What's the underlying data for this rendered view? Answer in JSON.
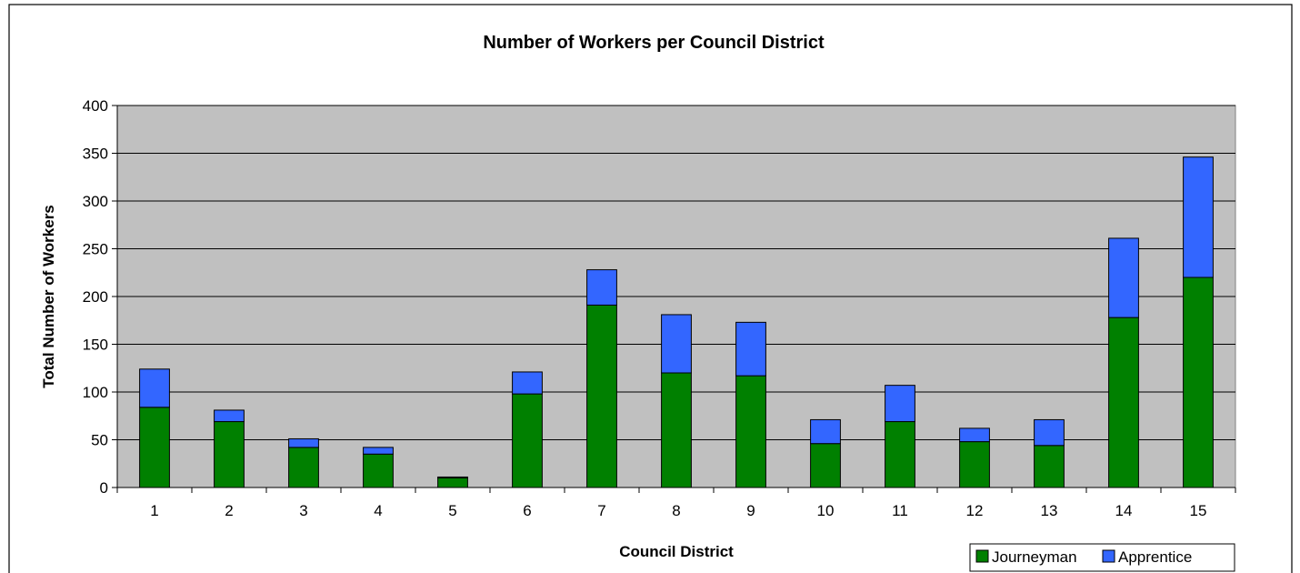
{
  "chart_data": {
    "type": "bar",
    "stacked": true,
    "title": "Number of Workers per Council District",
    "xlabel": "Council District",
    "ylabel": "Total Number of Workers",
    "categories": [
      "1",
      "2",
      "3",
      "4",
      "5",
      "6",
      "7",
      "8",
      "9",
      "10",
      "11",
      "12",
      "13",
      "14",
      "15"
    ],
    "series": [
      {
        "name": "Journeyman",
        "color": "#008000",
        "values": [
          84,
          69,
          42,
          35,
          10,
          98,
          191,
          120,
          117,
          46,
          69,
          48,
          44,
          178,
          220
        ]
      },
      {
        "name": "Apprentice",
        "color": "#3366ff",
        "values": [
          40,
          12,
          9,
          7,
          1,
          23,
          37,
          61,
          56,
          25,
          38,
          14,
          27,
          83,
          126
        ]
      }
    ],
    "ylim": [
      0,
      400
    ],
    "yticks": [
      0,
      50,
      100,
      150,
      200,
      250,
      300,
      350,
      400
    ],
    "grid": true,
    "plot_background": "#c0c0c0",
    "legend_position": "bottom-right"
  }
}
